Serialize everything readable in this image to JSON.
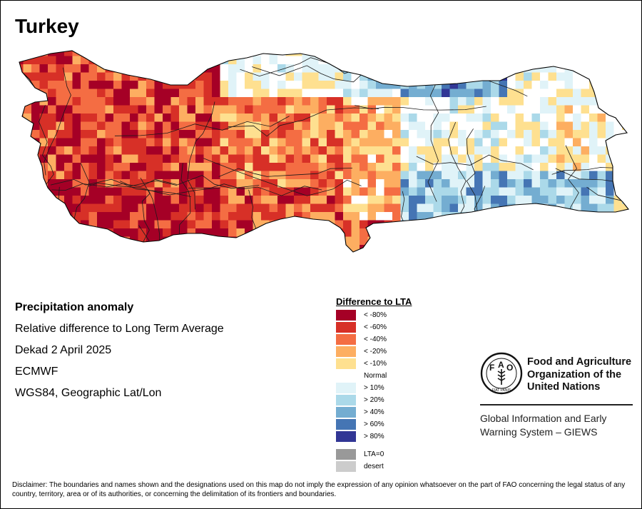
{
  "title": "Turkey",
  "info": {
    "heading": "Precipitation anomaly",
    "line1": "Relative difference to Long Term Average",
    "line2": "Dekad 2 April 2025",
    "line3": "ECMWF",
    "line4": "WGS84, Geographic Lat/Lon"
  },
  "legend": {
    "title": "Difference to LTA",
    "items": [
      {
        "label": "< -80%",
        "color": "#a50026"
      },
      {
        "label": "< -60%",
        "color": "#d73027"
      },
      {
        "label": "< -40%",
        "color": "#f46d43"
      },
      {
        "label": "< -20%",
        "color": "#fdae61"
      },
      {
        "label": "< -10%",
        "color": "#fee090"
      },
      {
        "label": "Normal",
        "color": "#ffffff"
      },
      {
        "label": "> 10%",
        "color": "#e0f3f8"
      },
      {
        "label": "> 20%",
        "color": "#abd9e9"
      },
      {
        "label": "> 40%",
        "color": "#74add1"
      },
      {
        "label": "> 60%",
        "color": "#4575b4"
      },
      {
        "label": "> 80%",
        "color": "#313695"
      }
    ],
    "extra": [
      {
        "label": "LTA=0",
        "color": "#999999"
      },
      {
        "label": "desert",
        "color": "#cccccc"
      }
    ]
  },
  "fao": {
    "org_line1": "Food and Agriculture",
    "org_line2": "Organization of the",
    "org_line3": "United Nations",
    "giews_line1": "Global Information and Early",
    "giews_line2": "Warning System – GIEWS",
    "logo_text": "FIAT PANIS"
  },
  "disclaimer": "Disclaimer: The boundaries and names shown and the designations used on this map do not imply the expression of any opinion whatsoever on the part of FAO concerning the legal status of any country, territory, area or of its authorities, or concerning the delimitation of its frontiers and boundaries."
}
